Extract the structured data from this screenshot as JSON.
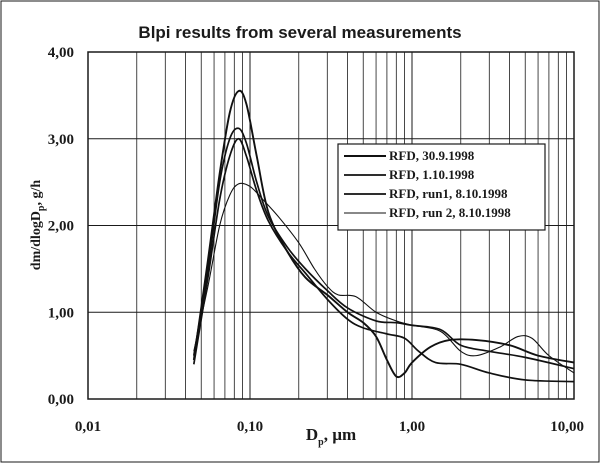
{
  "chart_data": {
    "type": "line",
    "title": "Blpi results from several measurements",
    "xlabel": {
      "main": "D",
      "sub": "p",
      "unit": ", µm"
    },
    "ylabel": {
      "pre": "dm/dlogD",
      "sub": "p",
      "post": ", g/h"
    },
    "xscale": "log",
    "xlim": [
      0.01,
      10
    ],
    "ylim": [
      0,
      4
    ],
    "xticks": [
      0.01,
      0.1,
      1,
      10
    ],
    "xtick_labels": [
      "0,01",
      "0,10",
      "1,00",
      "10,00"
    ],
    "yticks": [
      0,
      1,
      2,
      3,
      4
    ],
    "ytick_labels": [
      "0,00",
      "1,00",
      "2,00",
      "3,00",
      "4,00"
    ],
    "grid": true,
    "legend_position": "right-middle",
    "series": [
      {
        "name": "RFD, 30.9.1998",
        "points": [
          [
            0.045,
            0.45
          ],
          [
            0.055,
            1.6
          ],
          [
            0.065,
            2.6
          ],
          [
            0.075,
            3.3
          ],
          [
            0.085,
            3.55
          ],
          [
            0.095,
            3.4
          ],
          [
            0.11,
            2.8
          ],
          [
            0.13,
            2.15
          ],
          [
            0.17,
            1.7
          ],
          [
            0.22,
            1.4
          ],
          [
            0.3,
            1.2
          ],
          [
            0.4,
            1.0
          ],
          [
            0.5,
            0.88
          ],
          [
            0.6,
            0.72
          ],
          [
            0.7,
            0.45
          ],
          [
            0.8,
            0.26
          ],
          [
            0.9,
            0.3
          ],
          [
            1.0,
            0.42
          ],
          [
            1.3,
            0.6
          ],
          [
            1.7,
            0.68
          ],
          [
            2.5,
            0.68
          ],
          [
            4.0,
            0.62
          ],
          [
            6.0,
            0.5
          ],
          [
            10.0,
            0.42
          ]
        ]
      },
      {
        "name": "RFD, 1.10.1998",
        "points": [
          [
            0.045,
            0.5
          ],
          [
            0.055,
            1.5
          ],
          [
            0.065,
            2.5
          ],
          [
            0.075,
            3.0
          ],
          [
            0.085,
            3.12
          ],
          [
            0.095,
            2.95
          ],
          [
            0.11,
            2.5
          ],
          [
            0.13,
            2.1
          ],
          [
            0.17,
            1.75
          ],
          [
            0.22,
            1.5
          ],
          [
            0.3,
            1.25
          ],
          [
            0.4,
            1.05
          ],
          [
            0.6,
            0.9
          ],
          [
            0.8,
            0.88
          ],
          [
            1.0,
            0.85
          ],
          [
            1.5,
            0.8
          ],
          [
            2.0,
            0.62
          ],
          [
            3.0,
            0.55
          ],
          [
            5.0,
            0.48
          ],
          [
            10.0,
            0.35
          ]
        ]
      },
      {
        "name": "RFD, run1, 8.10.1998",
        "points": [
          [
            0.045,
            0.4
          ],
          [
            0.055,
            1.4
          ],
          [
            0.065,
            2.3
          ],
          [
            0.075,
            2.8
          ],
          [
            0.085,
            3.0
          ],
          [
            0.095,
            2.8
          ],
          [
            0.11,
            2.4
          ],
          [
            0.13,
            2.05
          ],
          [
            0.17,
            1.7
          ],
          [
            0.22,
            1.45
          ],
          [
            0.3,
            1.15
          ],
          [
            0.4,
            0.92
          ],
          [
            0.5,
            0.82
          ],
          [
            0.7,
            0.75
          ],
          [
            0.9,
            0.7
          ],
          [
            1.1,
            0.55
          ],
          [
            1.4,
            0.42
          ],
          [
            2.0,
            0.4
          ],
          [
            3.0,
            0.3
          ],
          [
            5.0,
            0.22
          ],
          [
            10.0,
            0.2
          ]
        ]
      },
      {
        "name": "RFD, run 2, 8.10.1998",
        "points": [
          [
            0.045,
            0.55
          ],
          [
            0.055,
            1.3
          ],
          [
            0.065,
            2.0
          ],
          [
            0.075,
            2.35
          ],
          [
            0.085,
            2.48
          ],
          [
            0.1,
            2.45
          ],
          [
            0.12,
            2.3
          ],
          [
            0.15,
            2.1
          ],
          [
            0.2,
            1.8
          ],
          [
            0.25,
            1.5
          ],
          [
            0.3,
            1.3
          ],
          [
            0.35,
            1.2
          ],
          [
            0.45,
            1.18
          ],
          [
            0.6,
            1.0
          ],
          [
            0.8,
            0.9
          ],
          [
            1.0,
            0.85
          ],
          [
            1.5,
            0.78
          ],
          [
            2.0,
            0.55
          ],
          [
            2.5,
            0.5
          ],
          [
            3.5,
            0.6
          ],
          [
            4.5,
            0.72
          ],
          [
            5.5,
            0.7
          ],
          [
            7.0,
            0.5
          ],
          [
            10.0,
            0.3
          ]
        ]
      }
    ]
  }
}
